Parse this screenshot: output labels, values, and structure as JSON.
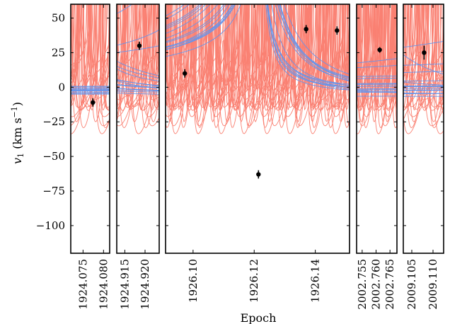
{
  "chart_data": {
    "type": "line",
    "xlabel": "Epoch",
    "ylabel_main": "v",
    "ylabel_sub": "1",
    "ylabel_unit_open": " (km s",
    "ylabel_unit_sup": "−1",
    "ylabel_unit_close": ")",
    "ylim": [
      -120,
      60
    ],
    "yticks": [
      50,
      25,
      0,
      -25,
      -50,
      -75,
      -100
    ],
    "ytick_labels": [
      "50",
      "25",
      "0",
      "−25",
      "−50",
      "−75",
      "−100"
    ],
    "colors": {
      "blue_curves": "#6495ed",
      "red_curves": "#fa8072",
      "points": "#000000"
    },
    "panels": [
      {
        "xlim": [
          1924.072,
          1924.0815
        ],
        "xticks": [
          1924.075,
          1924.08
        ],
        "xtick_labels": [
          "1924.075",
          "1924.080"
        ],
        "points": [
          {
            "x": 1924.0774,
            "y": -11,
            "yerr": 3
          }
        ]
      },
      {
        "xlim": [
          1924.913,
          1924.9235
        ],
        "xticks": [
          1924.915,
          1924.92
        ],
        "xtick_labels": [
          "1924.915",
          "1924.920"
        ],
        "points": [
          {
            "x": 1924.9186,
            "y": 30,
            "yerr": 3
          }
        ]
      },
      {
        "xlim": [
          1926.091,
          1926.1512
        ],
        "xticks": [
          1926.1,
          1926.12,
          1926.14
        ],
        "xtick_labels": [
          "1926.10",
          "1926.12",
          "1926.14"
        ],
        "points": [
          {
            "x": 1926.0973,
            "y": 10,
            "yerr": 3
          },
          {
            "x": 1926.1214,
            "y": -63,
            "yerr": 3
          },
          {
            "x": 1926.137,
            "y": 42,
            "yerr": 3
          },
          {
            "x": 1926.1471,
            "y": 41,
            "yerr": 3
          }
        ]
      },
      {
        "xlim": [
          2002.753,
          2002.7675
        ],
        "xticks": [
          2002.755,
          2002.76,
          2002.765
        ],
        "xtick_labels": [
          "2002.755",
          "2002.760",
          "2002.765"
        ],
        "points": [
          {
            "x": 2002.7613,
            "y": 27,
            "yerr": 2
          }
        ]
      },
      {
        "xlim": [
          2009.103,
          2009.1125
        ],
        "xticks": [
          2009.105,
          2009.11
        ],
        "xtick_labels": [
          "2009.105",
          "2009.110"
        ],
        "points": [
          {
            "x": 2009.1079,
            "y": 25,
            "yerr": 5
          }
        ]
      }
    ]
  }
}
